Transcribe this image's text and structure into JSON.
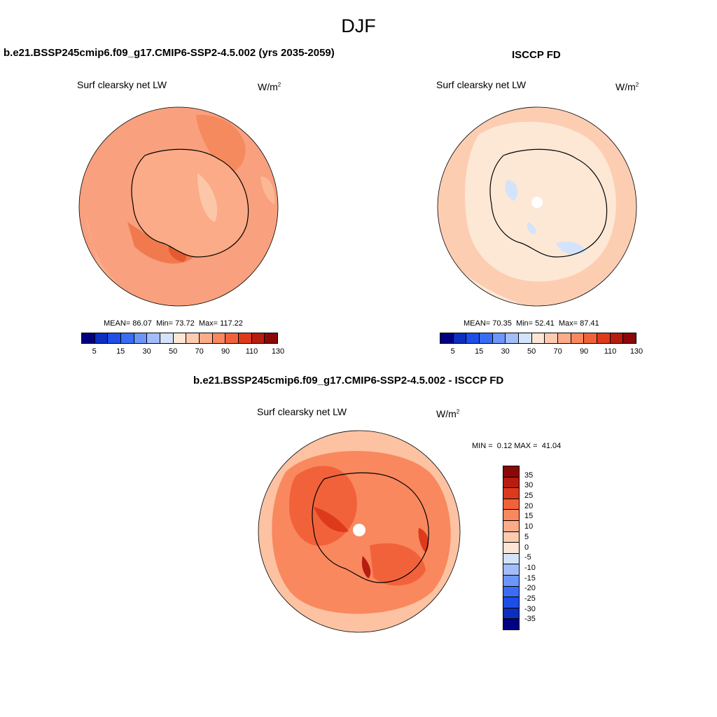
{
  "main_title": "DJF",
  "panels": [
    {
      "title": "b.e21.BSSP245cmip6.f09_g17.CMIP6-SSP2-4.5.002 (yrs 2035-2059)",
      "variable": "Surf clearsky net LW",
      "units_base": "W/m",
      "units_exp": "2",
      "stats": {
        "mean_label": "MEAN=",
        "mean": "86.07",
        "min_label": "Min=",
        "min": "73.72",
        "max_label": "Max=",
        "max": "117.22"
      }
    },
    {
      "title": "ISCCP FD",
      "variable": "Surf clearsky net LW",
      "units_base": "W/m",
      "units_exp": "2",
      "stats": {
        "mean_label": "MEAN=",
        "mean": "70.35",
        "min_label": "Min=",
        "min": "52.41",
        "max_label": "Max=",
        "max": "87.41"
      }
    },
    {
      "title": "b.e21.BSSP245cmip6.f09_g17.CMIP6-SSP2-4.5.002 - ISCCP FD",
      "variable": "Surf clearsky net LW",
      "units_base": "W/m",
      "units_exp": "2",
      "stats": {
        "min_label": "MIN =",
        "min": "0.12",
        "max_label": "MAX =",
        "max": "41.04"
      }
    }
  ],
  "colorbar_top": {
    "colors": [
      "#000080",
      "#0c2fbf",
      "#1f4ee6",
      "#3a6df5",
      "#6d95fa",
      "#a3bdfb",
      "#d3e3fb",
      "#fde6d5",
      "#fdcbb0",
      "#fcac8a",
      "#f9885f",
      "#f2623a",
      "#dd3a1c",
      "#b81c10",
      "#8a0808"
    ],
    "labels": [
      "5",
      "15",
      "30",
      "50",
      "70",
      "90",
      "110",
      "130"
    ]
  },
  "colorbar_diff": {
    "colors": [
      "#000080",
      "#0c2fbf",
      "#1f4ee6",
      "#3a6df5",
      "#6d95fa",
      "#a3bdfb",
      "#d3e3fb",
      "#fde6d5",
      "#fdcbb0",
      "#fcac8a",
      "#f9885f",
      "#f2623a",
      "#dd3a1c",
      "#b81c10",
      "#8a0808"
    ],
    "labels": [
      "35",
      "30",
      "25",
      "20",
      "15",
      "10",
      "5",
      "0",
      "-5",
      "-10",
      "-15",
      "-20",
      "-25",
      "-30",
      "-35"
    ]
  }
}
